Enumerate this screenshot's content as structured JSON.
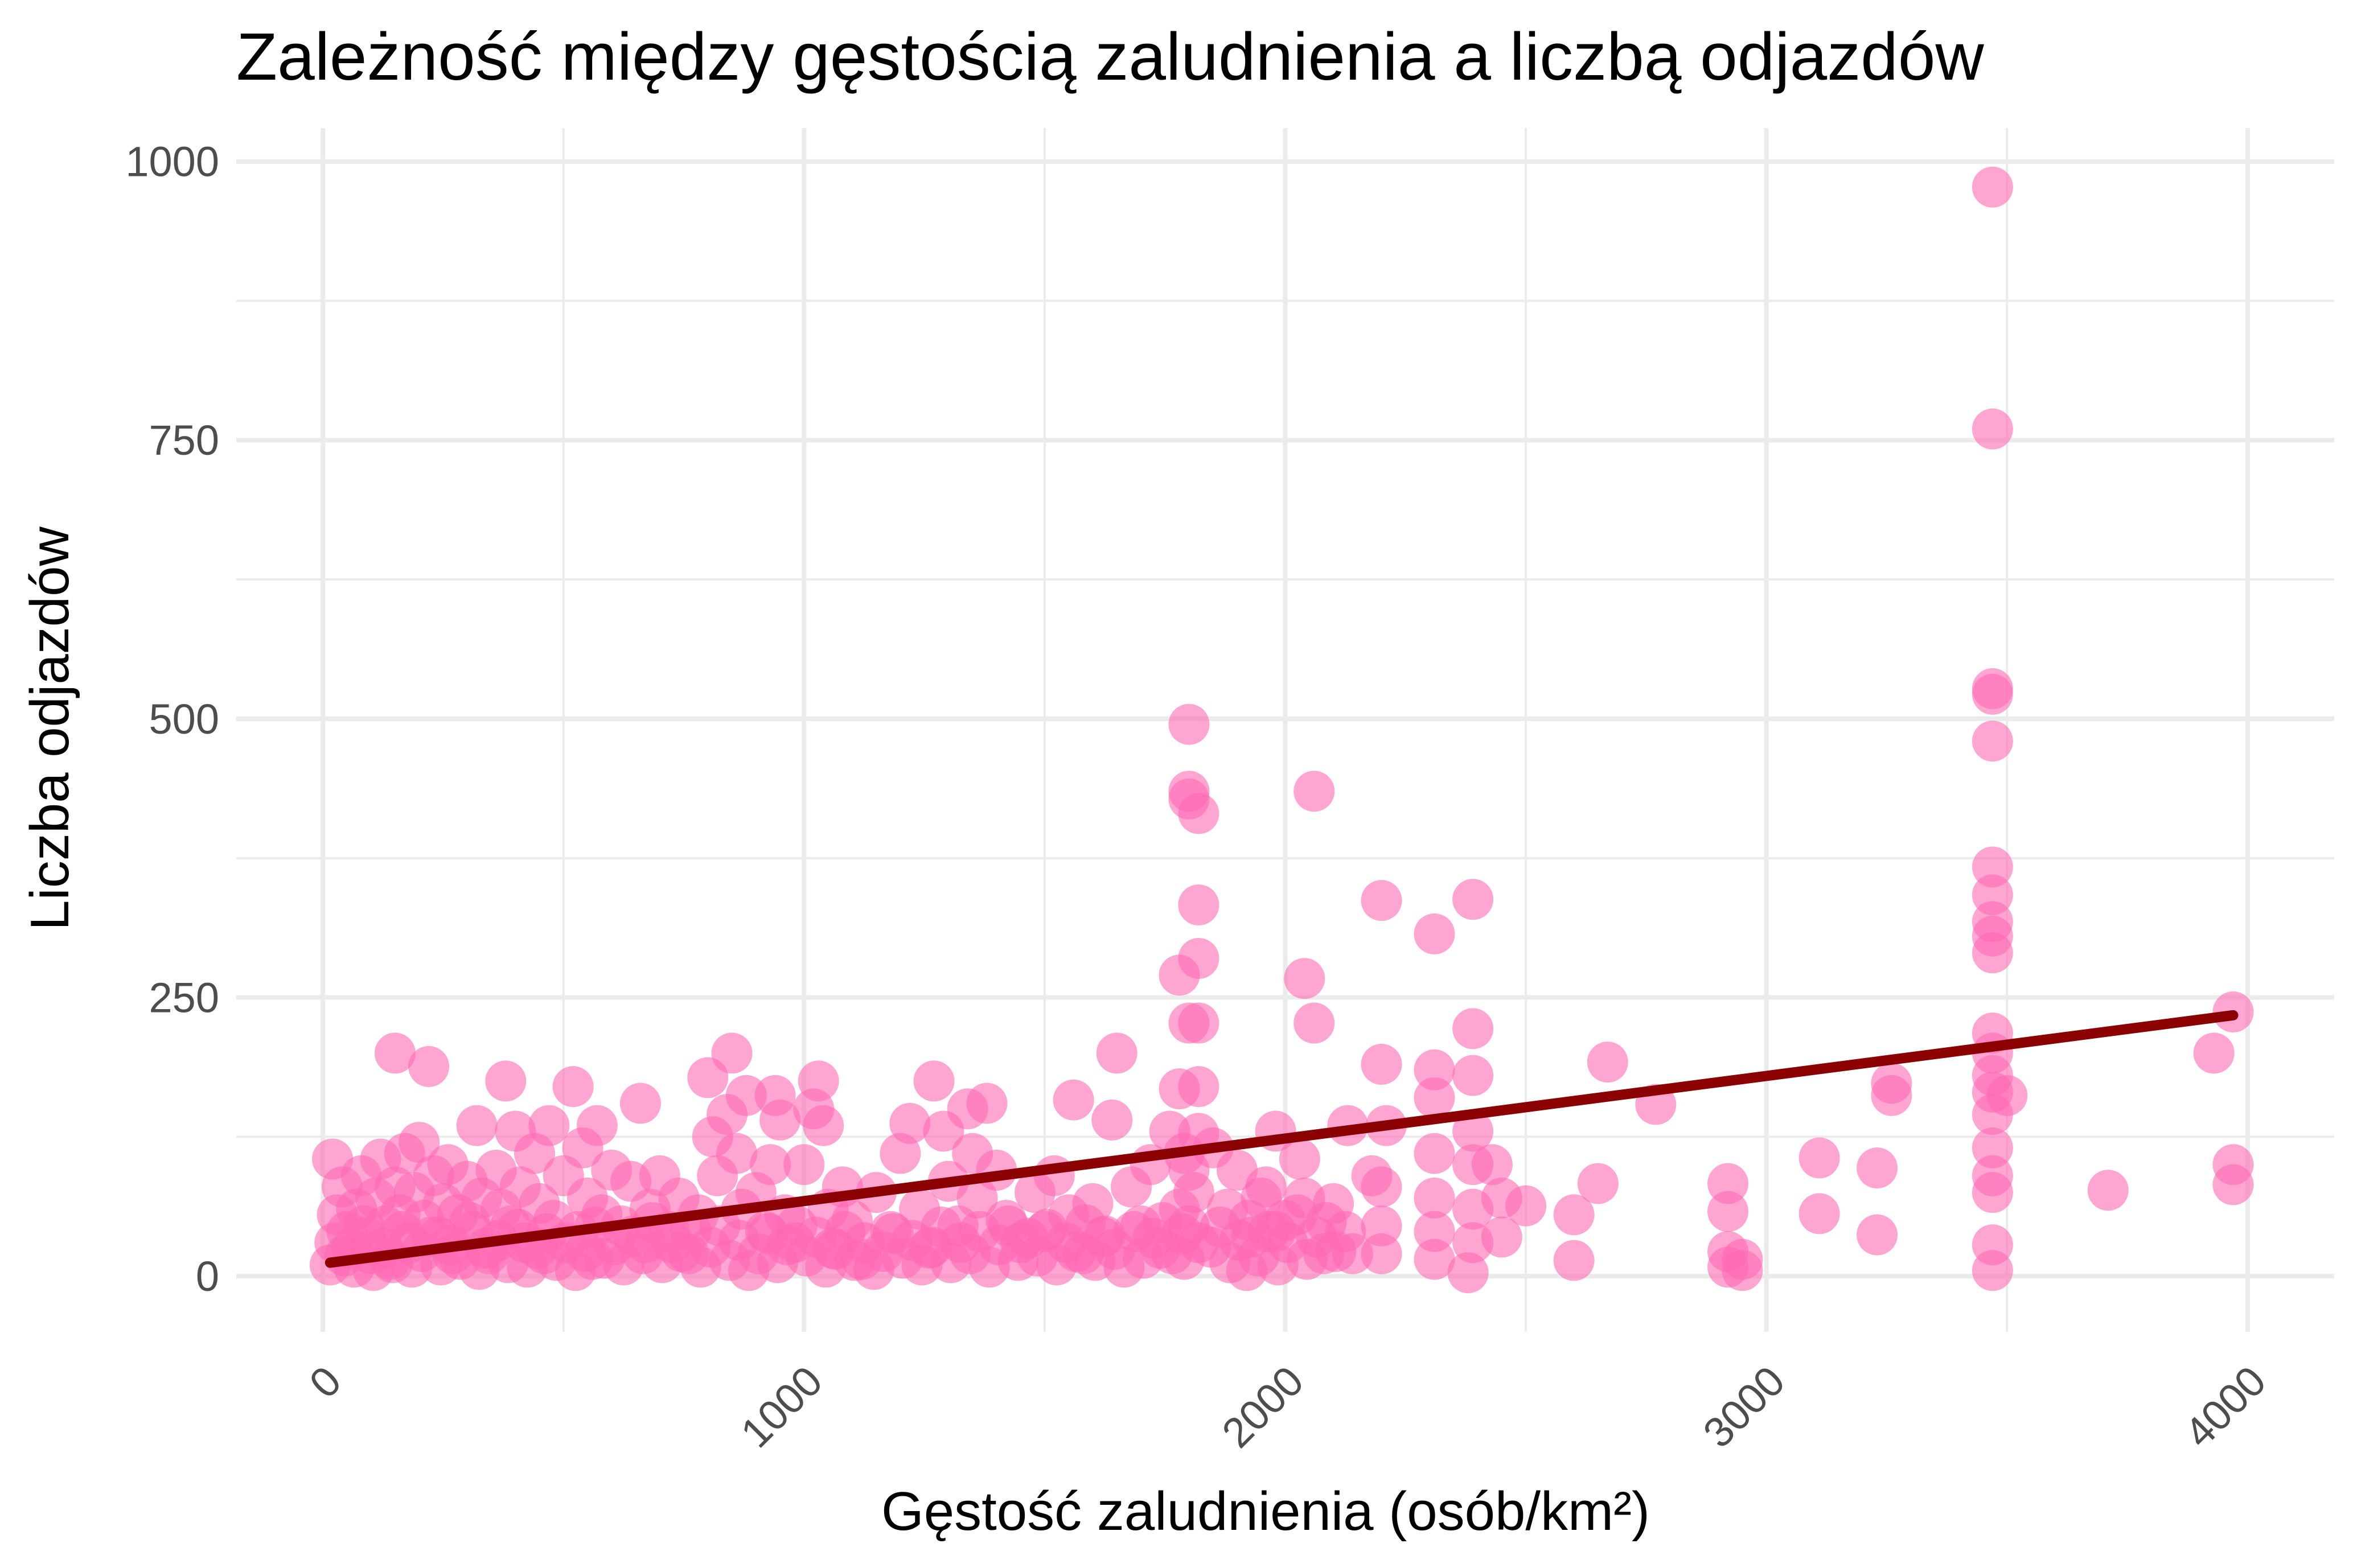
{
  "chart_data": {
    "type": "scatter",
    "title": "Zależność między gęstością zaludnienia a liczbą odjazdów",
    "xlabel": "Gęstość zaludnienia (osób/km²)",
    "ylabel": "Liczba odjazdów",
    "xlim": [
      -180,
      4180
    ],
    "ylim": [
      -50,
      1030
    ],
    "x_ticks": [
      0,
      1000,
      2000,
      3000,
      4000
    ],
    "x_tick_labels": [
      "0",
      "1000",
      "2000",
      "3000",
      "4000"
    ],
    "y_ticks": [
      0,
      250,
      500,
      750,
      1000
    ],
    "y_tick_labels": [
      "0",
      "250",
      "500",
      "750",
      "1000"
    ],
    "grid": true,
    "legend": "none",
    "point_color": "#ff69b4",
    "line_color": "#8b0000",
    "trend_line": {
      "x": [
        15,
        3970
      ],
      "y": [
        12,
        234
      ]
    },
    "points": [
      [
        3470,
        977
      ],
      [
        3470,
        760
      ],
      [
        3470,
        527
      ],
      [
        3470,
        522
      ],
      [
        3470,
        480
      ],
      [
        3470,
        367
      ],
      [
        3470,
        342
      ],
      [
        3470,
        318
      ],
      [
        3470,
        305
      ],
      [
        3470,
        290
      ],
      [
        3470,
        218
      ],
      [
        3470,
        200
      ],
      [
        3470,
        180
      ],
      [
        3470,
        165
      ],
      [
        3470,
        145
      ],
      [
        3470,
        115
      ],
      [
        3470,
        90
      ],
      [
        3470,
        75
      ],
      [
        3470,
        28
      ],
      [
        3470,
        5
      ],
      [
        3500,
        162
      ],
      [
        1800,
        495
      ],
      [
        1800,
        435
      ],
      [
        1800,
        428
      ],
      [
        1820,
        415
      ],
      [
        1820,
        333
      ],
      [
        1820,
        285
      ],
      [
        1780,
        270
      ],
      [
        1800,
        227
      ],
      [
        1820,
        227
      ],
      [
        1780,
        168
      ],
      [
        1820,
        170
      ],
      [
        1760,
        130
      ],
      [
        1820,
        128
      ],
      [
        1790,
        110
      ],
      [
        1800,
        95
      ],
      [
        1810,
        75
      ],
      [
        1780,
        60
      ],
      [
        1800,
        45
      ],
      [
        1820,
        30
      ],
      [
        1790,
        15
      ],
      [
        2060,
        435
      ],
      [
        2040,
        267
      ],
      [
        2060,
        227
      ],
      [
        2200,
        337
      ],
      [
        2200,
        190
      ],
      [
        2310,
        307
      ],
      [
        2390,
        338
      ],
      [
        2390,
        222
      ],
      [
        2310,
        185
      ],
      [
        2390,
        180
      ],
      [
        2310,
        160
      ],
      [
        2390,
        130
      ],
      [
        2210,
        135
      ],
      [
        2310,
        110
      ],
      [
        2390,
        100
      ],
      [
        2200,
        80
      ],
      [
        2310,
        70
      ],
      [
        2390,
        60
      ],
      [
        2200,
        45
      ],
      [
        2310,
        40
      ],
      [
        2390,
        30
      ],
      [
        2200,
        20
      ],
      [
        2310,
        15
      ],
      [
        2380,
        3
      ],
      [
        2450,
        70
      ],
      [
        2450,
        35
      ],
      [
        2430,
        100
      ],
      [
        2500,
        63
      ],
      [
        1980,
        130
      ],
      [
        2030,
        105
      ],
      [
        1960,
        80
      ],
      [
        2040,
        70
      ],
      [
        1980,
        40
      ],
      [
        2080,
        20
      ],
      [
        1920,
        5
      ],
      [
        2600,
        55
      ],
      [
        2600,
        14
      ],
      [
        2650,
        83
      ],
      [
        2670,
        192
      ],
      [
        2770,
        154
      ],
      [
        2920,
        83
      ],
      [
        2920,
        58
      ],
      [
        2920,
        22
      ],
      [
        2920,
        8
      ],
      [
        2950,
        15
      ],
      [
        2950,
        5
      ],
      [
        3110,
        106
      ],
      [
        3110,
        56
      ],
      [
        3230,
        97
      ],
      [
        3230,
        37
      ],
      [
        3260,
        173
      ],
      [
        3260,
        162
      ],
      [
        3710,
        77
      ],
      [
        3930,
        200
      ],
      [
        3970,
        237
      ],
      [
        3970,
        100
      ],
      [
        3970,
        82
      ],
      [
        20,
        105
      ],
      [
        30,
        55
      ],
      [
        40,
        80
      ],
      [
        50,
        40
      ],
      [
        60,
        25
      ],
      [
        70,
        60
      ],
      [
        80,
        90
      ],
      [
        90,
        35
      ],
      [
        100,
        20
      ],
      [
        110,
        70
      ],
      [
        120,
        105
      ],
      [
        130,
        45
      ],
      [
        140,
        15
      ],
      [
        150,
        80
      ],
      [
        150,
        200
      ],
      [
        160,
        55
      ],
      [
        170,
        110
      ],
      [
        180,
        30
      ],
      [
        190,
        75
      ],
      [
        200,
        120
      ],
      [
        210,
        50
      ],
      [
        220,
        188
      ],
      [
        230,
        90
      ],
      [
        240,
        35
      ],
      [
        250,
        65
      ],
      [
        260,
        100
      ],
      [
        270,
        20
      ],
      [
        280,
        55
      ],
      [
        300,
        85
      ],
      [
        310,
        40
      ],
      [
        320,
        135
      ],
      [
        330,
        70
      ],
      [
        340,
        25
      ],
      [
        360,
        95
      ],
      [
        370,
        60
      ],
      [
        380,
        175
      ],
      [
        390,
        45
      ],
      [
        400,
        130
      ],
      [
        410,
        80
      ],
      [
        420,
        30
      ],
      [
        440,
        110
      ],
      [
        450,
        65
      ],
      [
        460,
        20
      ],
      [
        470,
        135
      ],
      [
        480,
        50
      ],
      [
        500,
        90
      ],
      [
        520,
        170
      ],
      [
        530,
        40
      ],
      [
        540,
        115
      ],
      [
        550,
        70
      ],
      [
        560,
        15
      ],
      [
        570,
        135
      ],
      [
        580,
        55
      ],
      [
        600,
        95
      ],
      [
        620,
        45
      ],
      [
        640,
        85
      ],
      [
        660,
        155
      ],
      [
        670,
        30
      ],
      [
        680,
        60
      ],
      [
        700,
        90
      ],
      [
        720,
        40
      ],
      [
        740,
        70
      ],
      [
        760,
        20
      ],
      [
        780,
        55
      ],
      [
        800,
        178
      ],
      [
        810,
        125
      ],
      [
        820,
        90
      ],
      [
        840,
        145
      ],
      [
        850,
        200
      ],
      [
        860,
        110
      ],
      [
        870,
        60
      ],
      [
        880,
        162
      ],
      [
        900,
        75
      ],
      [
        920,
        40
      ],
      [
        930,
        100
      ],
      [
        940,
        162
      ],
      [
        950,
        140
      ],
      [
        960,
        55
      ],
      [
        980,
        30
      ],
      [
        1000,
        100
      ],
      [
        1020,
        150
      ],
      [
        1030,
        175
      ],
      [
        1040,
        135
      ],
      [
        1050,
        60
      ],
      [
        1060,
        25
      ],
      [
        1080,
        80
      ],
      [
        1100,
        50
      ],
      [
        1120,
        15
      ],
      [
        1150,
        75
      ],
      [
        1180,
        40
      ],
      [
        1200,
        110
      ],
      [
        1220,
        137
      ],
      [
        1240,
        60
      ],
      [
        1260,
        25
      ],
      [
        1270,
        175
      ],
      [
        1290,
        130
      ],
      [
        1300,
        85
      ],
      [
        1320,
        45
      ],
      [
        1340,
        150
      ],
      [
        1350,
        110
      ],
      [
        1360,
        70
      ],
      [
        1380,
        155
      ],
      [
        1400,
        95
      ],
      [
        1420,
        50
      ],
      [
        1450,
        30
      ],
      [
        1480,
        75
      ],
      [
        1500,
        40
      ],
      [
        1520,
        90
      ],
      [
        1550,
        55
      ],
      [
        1560,
        158
      ],
      [
        1580,
        20
      ],
      [
        1600,
        65
      ],
      [
        1620,
        35
      ],
      [
        1640,
        140
      ],
      [
        1650,
        200
      ],
      [
        1680,
        80
      ],
      [
        1700,
        45
      ],
      [
        1720,
        100
      ],
      [
        1740,
        25
      ],
      [
        1850,
        115
      ],
      [
        1880,
        60
      ],
      [
        1900,
        95
      ],
      [
        1930,
        35
      ],
      [
        1950,
        70
      ],
      [
        2000,
        50
      ],
      [
        2100,
        65
      ],
      [
        2130,
        135
      ],
      [
        2140,
        20
      ],
      [
        2180,
        90
      ],
      [
        15,
        10
      ],
      [
        25,
        30
      ],
      [
        45,
        18
      ],
      [
        65,
        8
      ],
      [
        85,
        45
      ],
      [
        105,
        5
      ],
      [
        125,
        25
      ],
      [
        145,
        12
      ],
      [
        165,
        40
      ],
      [
        185,
        8
      ],
      [
        205,
        22
      ],
      [
        225,
        35
      ],
      [
        245,
        10
      ],
      [
        265,
        28
      ],
      [
        285,
        15
      ],
      [
        305,
        48
      ],
      [
        325,
        6
      ],
      [
        345,
        20
      ],
      [
        365,
        32
      ],
      [
        385,
        12
      ],
      [
        405,
        42
      ],
      [
        425,
        8
      ],
      [
        445,
        25
      ],
      [
        465,
        38
      ],
      [
        485,
        14
      ],
      [
        505,
        30
      ],
      [
        525,
        5
      ],
      [
        545,
        22
      ],
      [
        565,
        44
      ],
      [
        585,
        16
      ],
      [
        605,
        28
      ],
      [
        625,
        10
      ],
      [
        645,
        36
      ],
      [
        665,
        20
      ],
      [
        685,
        48
      ],
      [
        705,
        12
      ],
      [
        725,
        30
      ],
      [
        745,
        22
      ],
      [
        765,
        40
      ],
      [
        785,
        8
      ],
      [
        805,
        26
      ],
      [
        825,
        45
      ],
      [
        845,
        14
      ],
      [
        865,
        32
      ],
      [
        885,
        5
      ],
      [
        905,
        20
      ],
      [
        925,
        38
      ],
      [
        945,
        12
      ],
      [
        965,
        28
      ],
      [
        985,
        45
      ],
      [
        1005,
        18
      ],
      [
        1025,
        35
      ],
      [
        1045,
        8
      ],
      [
        1065,
        24
      ],
      [
        1085,
        40
      ],
      [
        1105,
        14
      ],
      [
        1125,
        30
      ],
      [
        1145,
        6
      ],
      [
        1165,
        22
      ],
      [
        1185,
        38
      ],
      [
        1205,
        16
      ],
      [
        1225,
        32
      ],
      [
        1245,
        10
      ],
      [
        1265,
        26
      ],
      [
        1285,
        44
      ],
      [
        1305,
        12
      ],
      [
        1325,
        30
      ],
      [
        1345,
        20
      ],
      [
        1365,
        40
      ],
      [
        1385,
        8
      ],
      [
        1405,
        28
      ],
      [
        1425,
        45
      ],
      [
        1445,
        14
      ],
      [
        1465,
        34
      ],
      [
        1485,
        18
      ],
      [
        1505,
        42
      ],
      [
        1525,
        10
      ],
      [
        1545,
        30
      ],
      [
        1565,
        22
      ],
      [
        1585,
        46
      ],
      [
        1605,
        14
      ],
      [
        1625,
        36
      ],
      [
        1645,
        24
      ],
      [
        1665,
        8
      ],
      [
        1685,
        40
      ],
      [
        1705,
        16
      ],
      [
        1725,
        34
      ],
      [
        1745,
        48
      ],
      [
        1765,
        20
      ],
      [
        1785,
        38
      ],
      [
        1845,
        26
      ],
      [
        1865,
        44
      ],
      [
        1885,
        12
      ],
      [
        1905,
        32
      ],
      [
        1925,
        50
      ],
      [
        1945,
        18
      ],
      [
        1965,
        40
      ],
      [
        1985,
        10
      ],
      [
        2005,
        30
      ],
      [
        2025,
        55
      ],
      [
        2045,
        15
      ],
      [
        2065,
        35
      ],
      [
        2085,
        48
      ],
      [
        2105,
        22
      ],
      [
        2125,
        40
      ]
    ]
  }
}
